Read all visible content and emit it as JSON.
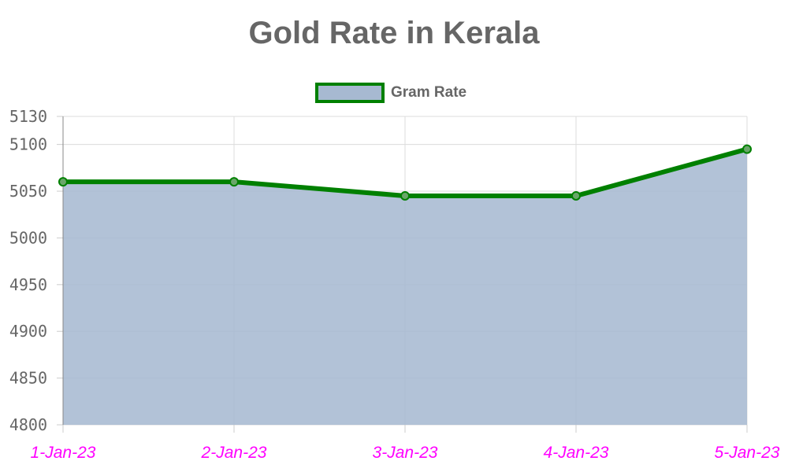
{
  "chart_data": {
    "type": "area",
    "title": "Gold Rate in Kerala",
    "categories": [
      "1-Jan-23",
      "2-Jan-23",
      "3-Jan-23",
      "4-Jan-23",
      "5-Jan-23"
    ],
    "series": [
      {
        "name": "Gram Rate",
        "values": [
          5060,
          5060,
          5045,
          5045,
          5095
        ],
        "line_color": "#008000",
        "fill_color": "#a7b9d1"
      }
    ],
    "ylim": [
      4800,
      5130
    ],
    "yticks": [
      4800,
      4850,
      4900,
      4950,
      5000,
      5050,
      5100,
      5130
    ],
    "grid": true,
    "legend_position": "top-center",
    "x_tick_color": "#ff00ff",
    "text_color": "#666666"
  }
}
